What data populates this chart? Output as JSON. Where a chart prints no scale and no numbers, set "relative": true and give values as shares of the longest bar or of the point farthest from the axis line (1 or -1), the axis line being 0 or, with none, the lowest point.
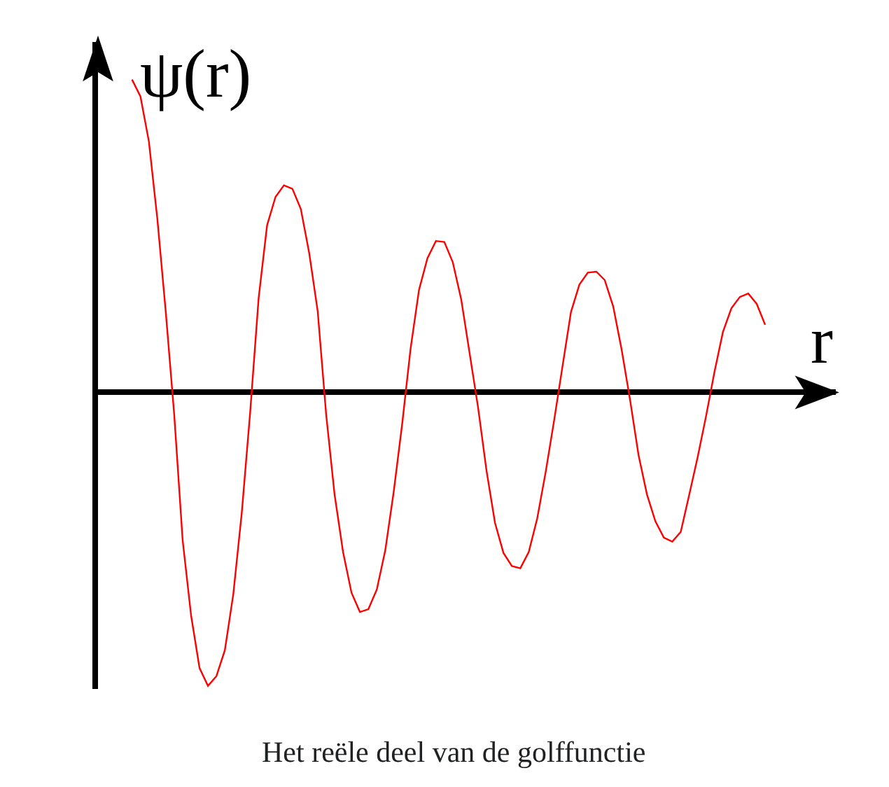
{
  "chart_data": {
    "type": "line",
    "relative": true,
    "xlabel": "r",
    "ylabel": "ψ(r)",
    "annotations": [
      "Het reële deel van de golffunctie"
    ],
    "categories": [
      null,
      null,
      null,
      null,
      null,
      null,
      null,
      null,
      null,
      null,
      null,
      null,
      null,
      null,
      null,
      null,
      null,
      null,
      null,
      null,
      null,
      null,
      null,
      null,
      null,
      null,
      null,
      null,
      null,
      null,
      null,
      null,
      null,
      null,
      null,
      null,
      null,
      null,
      null,
      null,
      null,
      null,
      null,
      null,
      null,
      null,
      null,
      null,
      null,
      null,
      null,
      null,
      null,
      null,
      null,
      null,
      null,
      null,
      null,
      null,
      null,
      null,
      null,
      null,
      null,
      null,
      null,
      null,
      null,
      null,
      null,
      null,
      null,
      null,
      null,
      null
    ],
    "series": [
      {
        "color": "#ff0000",
        "values": [
          1.0,
          0.946,
          0.802,
          0.555,
          0.257,
          -0.071,
          -0.473,
          -0.713,
          -0.881,
          -0.938,
          -0.907,
          -0.824,
          -0.645,
          -0.386,
          -0.063,
          0.301,
          0.534,
          0.625,
          0.662,
          0.651,
          0.586,
          0.444,
          0.259,
          -0.071,
          -0.327,
          -0.51,
          -0.64,
          -0.702,
          -0.693,
          -0.63,
          -0.505,
          -0.318,
          -0.102,
          0.14,
          0.328,
          0.429,
          0.484,
          0.481,
          0.416,
          0.297,
          0.124,
          -0.049,
          -0.251,
          -0.417,
          -0.513,
          -0.555,
          -0.562,
          -0.51,
          -0.403,
          -0.255,
          -0.09,
          0.084,
          0.257,
          0.345,
          0.383,
          0.386,
          0.359,
          0.275,
          0.137,
          -0.024,
          -0.2,
          -0.326,
          -0.412,
          -0.464,
          -0.477,
          -0.446,
          -0.328,
          -0.208,
          -0.076,
          0.066,
          0.193,
          0.269,
          0.305,
          0.316,
          0.283,
          0.216
        ]
      }
    ]
  }
}
